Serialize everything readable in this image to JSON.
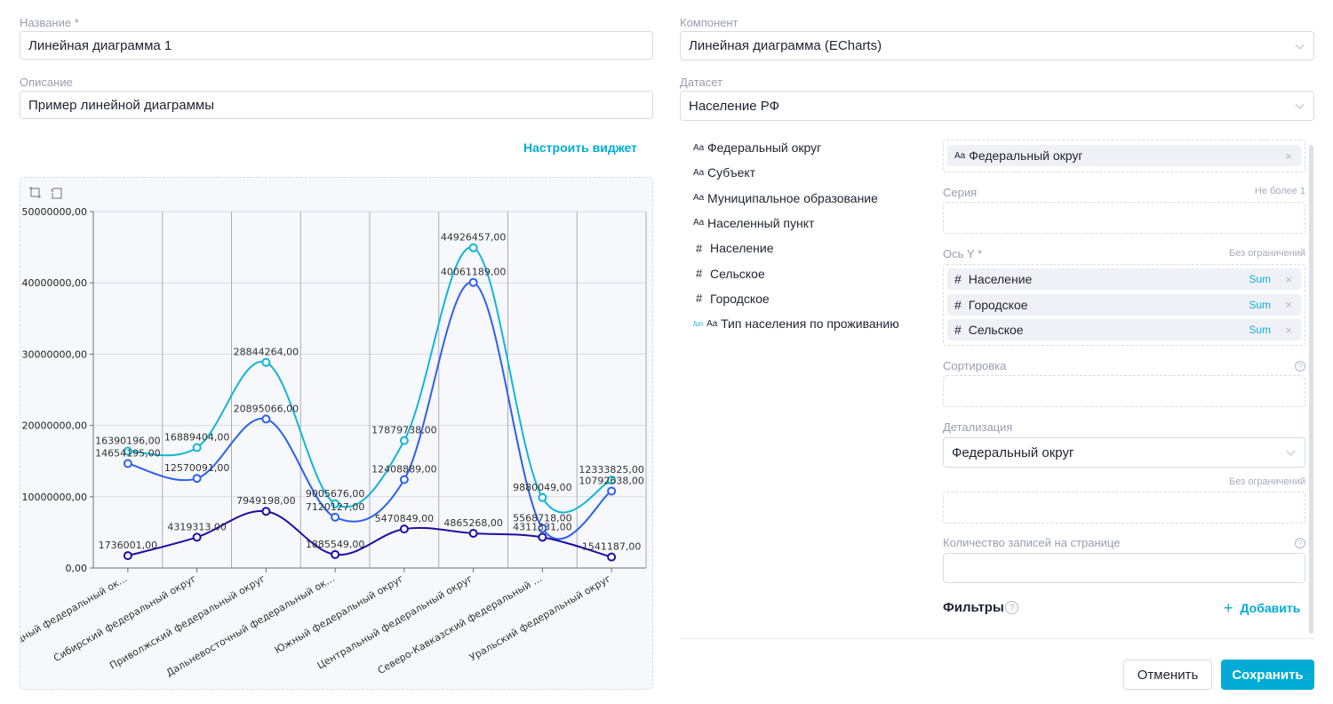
{
  "form": {
    "name_label": "Название *",
    "name_value": "Линейная диаграмма 1",
    "description_label": "Описание",
    "description_value": "Пример линейной диаграммы",
    "configure_link": "Настроить виджет",
    "component_label": "Компонент",
    "component_value": "Линейная диаграмма (ECharts)",
    "dataset_label": "Датасет",
    "dataset_value": "Население РФ"
  },
  "fields": [
    {
      "type": "Aa",
      "label": "Федеральный округ"
    },
    {
      "type": "Aa",
      "label": "Субъект"
    },
    {
      "type": "Aa",
      "label": "Муниципальное образование"
    },
    {
      "type": "Aa",
      "label": "Населенный пункт"
    },
    {
      "type": "#",
      "label": "Население"
    },
    {
      "type": "#",
      "label": "Сельское"
    },
    {
      "type": "#",
      "label": "Городское"
    },
    {
      "type": "Aa",
      "fn": "fun",
      "label": "Тип населения по проживанию"
    }
  ],
  "config": {
    "x_chip": {
      "type": "Aa",
      "label": "Федеральный округ",
      "remove": "×"
    },
    "series_label": "Серия",
    "series_hint": "Не более 1",
    "y_label": "Ось Y *",
    "y_hint": "Без ограничений",
    "y_chips": [
      {
        "type": "#",
        "label": "Население",
        "agg": "Sum",
        "remove": "×"
      },
      {
        "type": "#",
        "label": "Городское",
        "agg": "Sum",
        "remove": "×"
      },
      {
        "type": "#",
        "label": "Сельское",
        "agg": "Sum",
        "remove": "×"
      }
    ],
    "sort_label": "Сортировка",
    "help": "?",
    "detail_label": "Детализация",
    "detail_value": "Федеральный округ",
    "detail_hint": "Без ограничений",
    "page_size_label": "Количество записей на странице",
    "page_size_value": "",
    "filters_label": "Фильтры",
    "add_plus": "+",
    "add_label": "Добавить"
  },
  "buttons": {
    "cancel": "Отменить",
    "save": "Сохранить"
  },
  "colors": {
    "accent": "#00acd6",
    "population": "#12b5d6",
    "urban": "#2e5ff0",
    "rural": "#1c0ea0"
  },
  "chart_data": {
    "type": "line",
    "smooth": true,
    "grid": true,
    "toolbox": [
      "zoom-icon",
      "zoom-reset-icon"
    ],
    "categories": [
      "Северо-Западный федеральный ок...",
      "Сибирский федеральный округ",
      "Приволжский федеральный округ",
      "Дальневосточный федеральный ок...",
      "Южный федеральный округ",
      "Центральный федеральный округ",
      "Северо-Кавказский федеральный ...",
      "Уральский федеральный округ"
    ],
    "ylim": [
      0,
      50000000
    ],
    "yticks": [
      "0,00",
      "10000000,00",
      "20000000,00",
      "30000000,00",
      "40000000,00",
      "50000000,00"
    ],
    "series": [
      {
        "key": "population",
        "values": [
          16390196,
          16889404,
          28844264,
          9005676,
          17879738,
          44926457,
          9880049,
          12333825
        ]
      },
      {
        "key": "urban",
        "values": [
          14654195,
          12570091,
          20895066,
          7120127,
          12408889,
          40061189,
          5568718,
          10792638
        ]
      },
      {
        "key": "rural",
        "values": [
          1736001,
          4319313,
          7949198,
          1885549,
          5470849,
          4865268,
          4311331,
          1541187
        ]
      }
    ]
  }
}
